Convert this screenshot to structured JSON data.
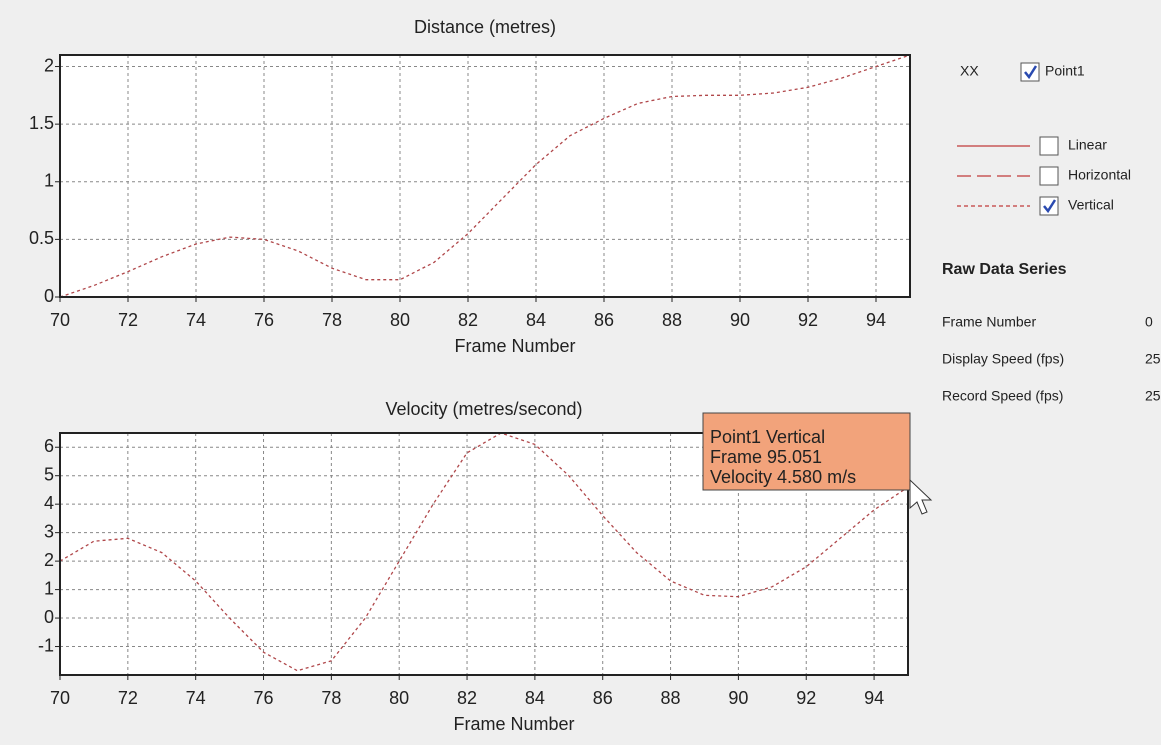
{
  "chart_data": [
    {
      "type": "line",
      "title": "Distance (metres)",
      "x_label": "Frame Number",
      "grid": true,
      "x": [
        70,
        71,
        72,
        73,
        74,
        75,
        76,
        77,
        78,
        79,
        80,
        81,
        82,
        83,
        84,
        85,
        86,
        87,
        88,
        89,
        90,
        91,
        92,
        93,
        94,
        95
      ],
      "xlim": [
        70,
        95
      ],
      "xticks": [
        70,
        72,
        74,
        76,
        78,
        80,
        82,
        84,
        86,
        88,
        90,
        92,
        94
      ],
      "ylim": [
        0,
        2.1
      ],
      "yticks": [
        0,
        0.5,
        1,
        1.5,
        2
      ],
      "series": [
        {
          "color": "#b0474a",
          "values": [
            0,
            0.1,
            0.22,
            0.35,
            0.46,
            0.52,
            0.5,
            0.4,
            0.25,
            0.15,
            0.15,
            0.3,
            0.55,
            0.85,
            1.15,
            1.4,
            1.55,
            1.68,
            1.74,
            1.75,
            1.75,
            1.77,
            1.82,
            1.9,
            2.0,
            2.1
          ]
        }
      ]
    },
    {
      "type": "line",
      "title": "Velocity (metres/second)",
      "x_label": "Frame Number",
      "grid": true,
      "x": [
        70,
        71,
        72,
        73,
        74,
        75,
        76,
        77,
        78,
        79,
        80,
        81,
        82,
        83,
        84,
        85,
        86,
        87,
        88,
        89,
        90,
        91,
        92,
        93,
        94,
        95
      ],
      "xlim": [
        70,
        95
      ],
      "xticks": [
        70,
        72,
        74,
        76,
        78,
        80,
        82,
        84,
        86,
        88,
        90,
        92,
        94
      ],
      "ylim": [
        -2,
        6.5
      ],
      "yticks": [
        -1,
        0,
        1,
        2,
        3,
        4,
        5,
        6
      ],
      "series": [
        {
          "color": "#b0474a",
          "values": [
            2,
            2.7,
            2.8,
            2.3,
            1.3,
            0,
            -1.2,
            -1.85,
            -1.5,
            0,
            2,
            4,
            5.8,
            6.5,
            6.1,
            5,
            3.6,
            2.3,
            1.3,
            0.8,
            0.75,
            1.1,
            1.8,
            2.8,
            3.8,
            4.6
          ]
        }
      ],
      "tooltip": [
        "Point1 Vertical",
        "Frame 95.051",
        "Velocity 4.580 m/s"
      ]
    }
  ],
  "panel": {
    "marker": "XX",
    "point": "Point1",
    "point_checked": true,
    "lines": [
      {
        "label": "Linear",
        "checked": false
      },
      {
        "label": "Horizontal",
        "checked": false
      },
      {
        "label": "Vertical",
        "checked": true
      }
    ],
    "raw_title": "Raw Data Series",
    "rows": [
      [
        "Frame Number",
        0
      ],
      [
        "Display Speed (fps)",
        25
      ],
      [
        "Record Speed (fps)",
        25
      ]
    ]
  }
}
